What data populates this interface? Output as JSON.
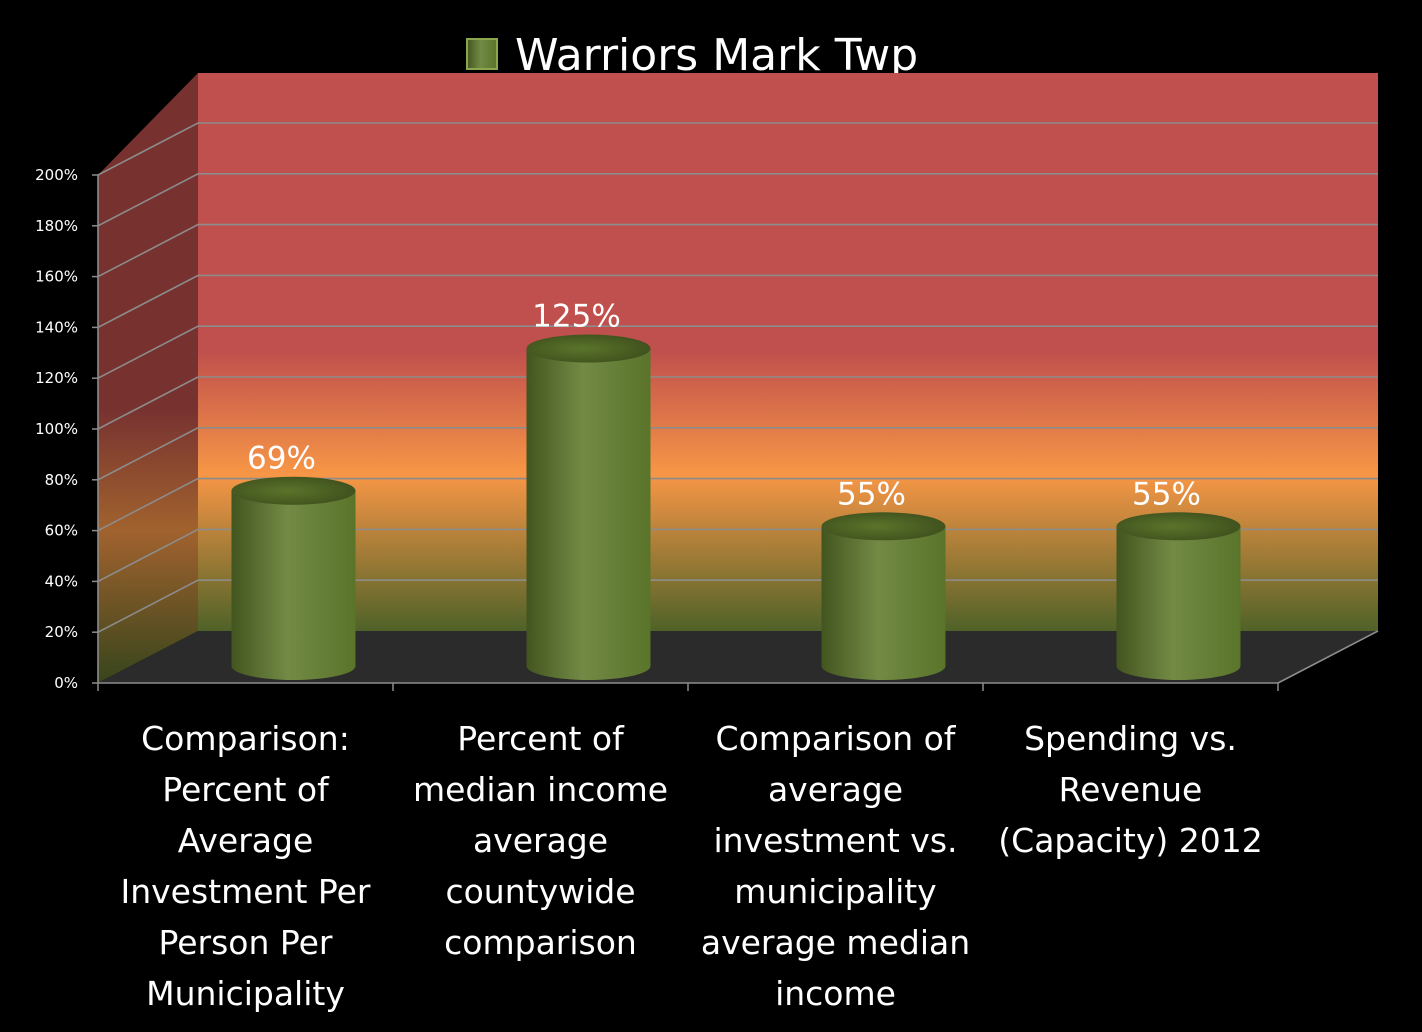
{
  "chart_data": {
    "type": "bar",
    "style": "3d-cylinder",
    "title": "",
    "xlabel": "",
    "ylabel": "",
    "categories": [
      "Comparison: Percent of Average Investment Per Person Per Municipality",
      "Percent of median income average countywide comparison",
      "Comparison of average investment vs. municipality average median income",
      "Spending vs. Revenue (Capacity) 2012"
    ],
    "category_lines": [
      [
        "Comparison:",
        "Percent of",
        "Average",
        "Investment Per",
        "Person Per",
        "Municipality"
      ],
      [
        "Percent of",
        "median income",
        "average",
        "countywide",
        "comparison"
      ],
      [
        "Comparison of",
        "average",
        "investment vs.",
        "municipality",
        "average median",
        "income"
      ],
      [
        "Spending vs.",
        "Revenue",
        "(Capacity) 2012"
      ]
    ],
    "series": [
      {
        "name": "Warriors Mark Twp",
        "values": [
          69,
          125,
          55,
          55
        ],
        "data_labels": [
          "69%",
          "125%",
          "55%",
          "55%"
        ],
        "color": "#5f7a2c"
      }
    ],
    "yticks": [
      "0%",
      "20%",
      "40%",
      "60%",
      "80%",
      "100%",
      "120%",
      "140%",
      "160%",
      "180%",
      "200%"
    ],
    "ylim": [
      0,
      200
    ],
    "grid": true,
    "legend": "top-center",
    "colors": {
      "background": "#000000",
      "wall_top": "#c0504d",
      "wall_mid": "#f79646",
      "wall_bottom": "#4f6228",
      "floor": "#2b2b2b",
      "bar": "#5f7a2c",
      "text": "#ffffff"
    }
  }
}
